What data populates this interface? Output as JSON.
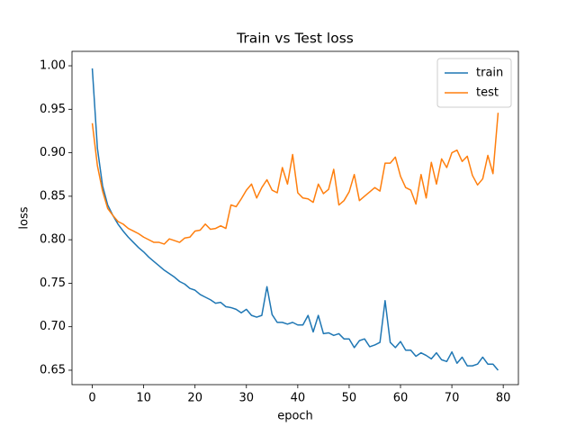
{
  "chart_data": {
    "type": "line",
    "title": "Train vs Test loss",
    "x_label": "epoch",
    "y_label": "loss",
    "x": [
      0,
      1,
      2,
      3,
      4,
      5,
      6,
      7,
      8,
      9,
      10,
      11,
      12,
      13,
      14,
      15,
      16,
      17,
      18,
      19,
      20,
      21,
      22,
      23,
      24,
      25,
      26,
      27,
      28,
      29,
      30,
      31,
      32,
      33,
      34,
      35,
      36,
      37,
      38,
      39,
      40,
      41,
      42,
      43,
      44,
      45,
      46,
      47,
      48,
      49,
      50,
      51,
      52,
      53,
      54,
      55,
      56,
      57,
      58,
      59,
      60,
      61,
      62,
      63,
      64,
      65,
      66,
      67,
      68,
      69,
      70,
      71,
      72,
      73,
      74,
      75,
      76,
      77,
      78,
      79
    ],
    "series": [
      {
        "name": "train",
        "color": "#1f77b4",
        "values": [
          0.997,
          0.905,
          0.862,
          0.84,
          0.828,
          0.818,
          0.81,
          0.803,
          0.797,
          0.791,
          0.786,
          0.78,
          0.775,
          0.77,
          0.765,
          0.761,
          0.757,
          0.752,
          0.749,
          0.744,
          0.742,
          0.737,
          0.734,
          0.731,
          0.727,
          0.728,
          0.723,
          0.722,
          0.72,
          0.716,
          0.72,
          0.713,
          0.711,
          0.713,
          0.746,
          0.714,
          0.705,
          0.705,
          0.703,
          0.705,
          0.702,
          0.702,
          0.713,
          0.694,
          0.713,
          0.692,
          0.693,
          0.69,
          0.692,
          0.686,
          0.686,
          0.676,
          0.684,
          0.686,
          0.677,
          0.679,
          0.682,
          0.73,
          0.682,
          0.676,
          0.683,
          0.673,
          0.673,
          0.666,
          0.67,
          0.667,
          0.663,
          0.67,
          0.662,
          0.66,
          0.671,
          0.658,
          0.665,
          0.655,
          0.655,
          0.657,
          0.665,
          0.657,
          0.657,
          0.65
        ]
      },
      {
        "name": "test",
        "color": "#ff7f0e",
        "values": [
          0.934,
          0.885,
          0.856,
          0.836,
          0.828,
          0.821,
          0.818,
          0.813,
          0.81,
          0.807,
          0.803,
          0.8,
          0.797,
          0.797,
          0.795,
          0.801,
          0.799,
          0.797,
          0.802,
          0.803,
          0.81,
          0.811,
          0.818,
          0.812,
          0.813,
          0.816,
          0.813,
          0.84,
          0.838,
          0.847,
          0.857,
          0.864,
          0.848,
          0.86,
          0.869,
          0.857,
          0.854,
          0.883,
          0.864,
          0.898,
          0.854,
          0.848,
          0.847,
          0.843,
          0.864,
          0.853,
          0.858,
          0.881,
          0.84,
          0.845,
          0.855,
          0.875,
          0.845,
          0.85,
          0.855,
          0.86,
          0.856,
          0.888,
          0.888,
          0.895,
          0.873,
          0.86,
          0.857,
          0.841,
          0.875,
          0.848,
          0.889,
          0.864,
          0.893,
          0.883,
          0.9,
          0.903,
          0.89,
          0.896,
          0.874,
          0.863,
          0.87,
          0.897,
          0.876,
          0.946
        ]
      }
    ],
    "xlim": [
      -3.95,
      82.95
    ],
    "ylim": [
      0.6334,
      1.0166
    ],
    "xticks": [
      0,
      10,
      20,
      30,
      40,
      50,
      60,
      70,
      80
    ],
    "yticks": [
      0.65,
      {
        "value": 0.7,
        "label": "0.70"
      },
      0.75,
      {
        "value": 0.8,
        "label": "0.80"
      },
      0.85,
      {
        "value": 0.9,
        "label": "0.90"
      },
      0.95,
      {
        "value": 1.0,
        "label": "1.00"
      }
    ],
    "legend": "upper right"
  }
}
